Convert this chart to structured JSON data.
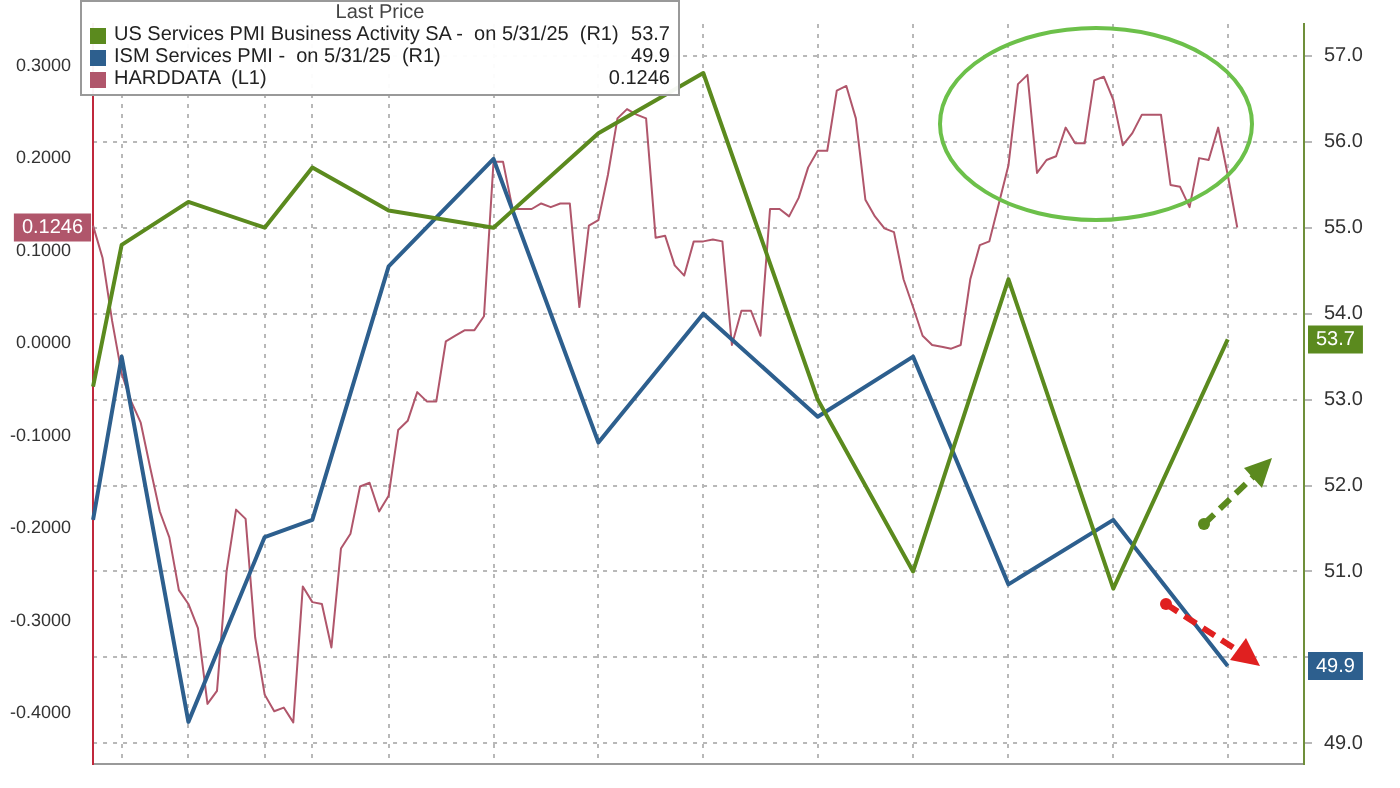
{
  "chart_data": {
    "type": "line",
    "legend_title": "Last Price",
    "legend": "top left",
    "grid": true,
    "tick_labels": "y",
    "marker": "none",
    "categories": [
      null,
      null,
      null,
      null,
      null,
      null,
      null,
      null,
      null,
      null,
      null,
      null,
      null,
      null,
      null,
      null,
      null,
      null,
      null,
      null,
      null,
      null,
      null,
      null,
      null,
      null,
      null,
      null,
      null,
      null,
      null,
      null,
      null,
      null,
      null,
      null,
      null,
      null,
      null,
      null,
      null,
      null,
      null,
      null,
      null,
      null,
      null,
      null,
      null,
      null,
      null,
      null,
      null,
      null,
      null,
      null,
      null,
      null,
      null,
      null,
      null,
      null,
      null,
      null,
      null,
      null,
      null,
      null,
      null,
      null,
      null,
      null,
      null,
      null,
      null,
      null,
      null,
      null,
      null,
      null,
      null,
      null,
      null,
      null,
      null,
      null,
      null,
      null,
      null,
      null,
      null,
      null,
      null,
      null,
      null,
      null,
      null,
      null,
      null,
      null,
      null,
      null,
      null,
      null,
      null,
      null,
      null,
      null,
      null,
      null,
      null,
      null,
      null,
      null,
      null,
      null,
      null,
      null,
      null,
      null,
      null,
      null,
      null,
      null,
      null,
      null,
      null,
      null
    ],
    "ylim": [
      -0.455,
      0.345
    ],
    "yticks": [
      {
        "value": 0.3,
        "label": "0.3000"
      },
      {
        "value": 0.2,
        "label": "0.2000"
      },
      {
        "value": 0.1,
        "label": "0.1000"
      },
      {
        "value": 0,
        "label": "0.0000"
      },
      {
        "value": -0.1,
        "label": "-0.1000"
      },
      {
        "value": -0.2,
        "label": "-0.2000"
      },
      {
        "value": -0.3,
        "label": "-0.3000"
      },
      {
        "value": -0.4,
        "label": "-0.4000"
      }
    ],
    "y2lim": [
      48.76,
      57.37
    ],
    "y2ticks": [
      {
        "value": 49,
        "label": "49.0"
      },
      {
        "value": 50,
        "label": null
      },
      {
        "value": 51,
        "label": "51.0"
      },
      {
        "value": 52,
        "label": "52.0"
      },
      {
        "value": 53,
        "label": "53.0"
      },
      {
        "value": 54,
        "label": "54.0"
      },
      {
        "value": 55,
        "label": "55.0"
      },
      {
        "value": 56,
        "label": "56.0"
      },
      {
        "value": 57,
        "label": "57.0"
      }
    ],
    "annotations": [
      "53.7",
      "49.9",
      "0.1246"
    ],
    "series": [
      {
        "name": "US Services PMI Business Activity SA -  on 5/31/25  (R1)",
        "color": "#5b8a1e",
        "axis": "y2",
        "values": [
          53.15,
          null,
          null,
          54.8,
          null,
          null,
          null,
          null,
          null,
          null,
          55.3,
          null,
          null,
          null,
          null,
          null,
          null,
          null,
          55.0,
          null,
          null,
          null,
          null,
          55.7,
          null,
          null,
          null,
          null,
          null,
          null,
          null,
          55.2,
          null,
          null,
          null,
          null,
          null,
          null,
          null,
          null,
          null,
          null,
          55.0,
          null,
          null,
          null,
          null,
          null,
          null,
          null,
          null,
          null,
          null,
          56.1,
          null,
          null,
          null,
          null,
          null,
          null,
          null,
          null,
          null,
          null,
          56.8,
          null,
          null,
          null,
          null,
          null,
          null,
          null,
          null,
          null,
          null,
          null,
          53.0,
          null,
          null,
          null,
          null,
          null,
          null,
          null,
          null,
          null,
          51.0,
          null,
          null,
          null,
          null,
          null,
          null,
          null,
          null,
          null,
          54.4,
          null,
          null,
          null,
          null,
          null,
          null,
          null,
          null,
          null,
          null,
          50.8,
          null,
          null,
          null,
          null,
          null,
          null,
          null,
          null,
          null,
          null,
          null,
          53.7,
          null,
          null,
          null,
          null,
          null,
          null,
          null,
          null
        ]
      },
      {
        "name": "ISM Services PMI -  on 5/31/25  (R1)",
        "color": "#2d5f8e",
        "axis": "y2",
        "values": [
          51.6,
          null,
          null,
          53.5,
          null,
          null,
          null,
          null,
          null,
          null,
          49.25,
          null,
          null,
          null,
          null,
          null,
          null,
          null,
          51.4,
          null,
          null,
          null,
          null,
          51.6,
          null,
          null,
          null,
          null,
          null,
          null,
          null,
          54.55,
          null,
          null,
          null,
          null,
          null,
          null,
          null,
          null,
          null,
          null,
          55.8,
          null,
          null,
          null,
          null,
          null,
          null,
          null,
          null,
          null,
          null,
          52.5,
          null,
          null,
          null,
          null,
          null,
          null,
          null,
          null,
          null,
          null,
          54.0,
          null,
          null,
          null,
          null,
          null,
          null,
          null,
          null,
          null,
          null,
          null,
          52.8,
          null,
          null,
          null,
          null,
          null,
          null,
          null,
          null,
          null,
          53.5,
          null,
          null,
          null,
          null,
          null,
          null,
          null,
          null,
          null,
          50.85,
          null,
          null,
          null,
          null,
          null,
          null,
          null,
          null,
          null,
          null,
          51.6,
          null,
          null,
          null,
          null,
          null,
          null,
          null,
          null,
          null,
          null,
          null,
          49.9,
          null,
          null,
          null,
          null,
          null,
          null,
          null,
          null
        ]
      },
      {
        "name": "HARDDATA  (L1)",
        "color": "#b0566b",
        "axis": "y",
        "values": [
          0.127,
          0.092,
          0.024,
          -0.033,
          -0.063,
          -0.086,
          -0.135,
          -0.182,
          -0.21,
          -0.267,
          -0.282,
          -0.308,
          -0.39,
          -0.376,
          -0.247,
          -0.18,
          -0.19,
          -0.318,
          -0.38,
          -0.398,
          -0.394,
          -0.41,
          -0.263,
          -0.28,
          -0.282,
          -0.329,
          -0.222,
          -0.206,
          -0.155,
          -0.151,
          -0.182,
          -0.165,
          -0.094,
          -0.084,
          -0.053,
          -0.063,
          -0.063,
          0.002,
          0.008,
          0.014,
          0.014,
          0.029,
          0.196,
          0.196,
          0.145,
          0.145,
          0.145,
          0.151,
          0.147,
          0.151,
          0.151,
          0.039,
          0.127,
          0.133,
          0.182,
          0.243,
          0.253,
          0.247,
          0.243,
          0.114,
          0.116,
          0.084,
          0.073,
          0.11,
          0.11,
          0.112,
          0.11,
          -0.002,
          0.035,
          0.035,
          0.008,
          0.145,
          0.145,
          0.137,
          0.157,
          0.19,
          0.208,
          0.208,
          0.273,
          0.278,
          0.243,
          0.155,
          0.137,
          0.124,
          0.12,
          0.069,
          0.039,
          0.008,
          -0.002,
          -0.004,
          -0.006,
          -0.002,
          0.069,
          0.106,
          0.11,
          0.151,
          0.192,
          0.28,
          0.29,
          0.184,
          0.198,
          0.202,
          0.233,
          0.216,
          0.216,
          0.284,
          0.288,
          0.263,
          0.214,
          0.227,
          0.247,
          0.247,
          0.247,
          0.171,
          0.169,
          0.147,
          0.2,
          0.198,
          0.233,
          0.182,
          0.125,
          null,
          null,
          null,
          null,
          null,
          null,
          null
        ]
      }
    ]
  }
}
